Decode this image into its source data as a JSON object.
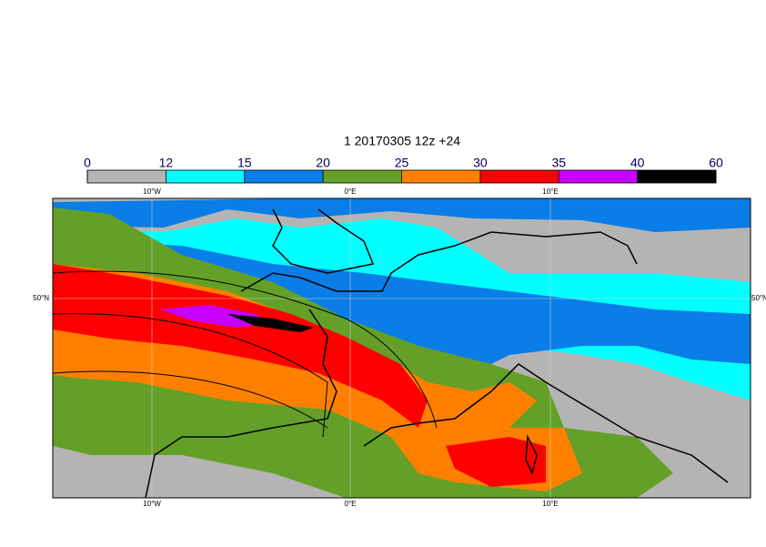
{
  "title": "1 20170305 12z +24",
  "colorbar": {
    "levels": [
      0,
      12,
      15,
      20,
      25,
      30,
      35,
      40,
      60
    ],
    "colors": [
      "#b4b4b4",
      "#00ffff",
      "#0a7de6",
      "#64a028",
      "#ff8000",
      "#ff0000",
      "#c800ff",
      "#000000"
    ]
  },
  "map": {
    "lon_labels": [
      "10°W",
      "0°E",
      "10°E"
    ],
    "lat_labels": [
      "50°N"
    ]
  }
}
